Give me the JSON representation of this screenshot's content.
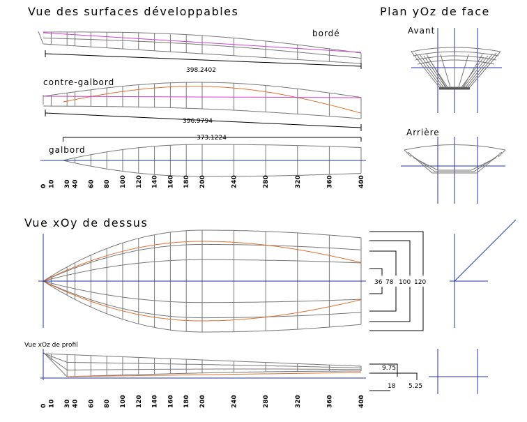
{
  "surfaces_view": {
    "title": "Vue des surfaces développables",
    "panels": [
      {
        "label": "bordé",
        "dimension": "398.2402"
      },
      {
        "label": "contre-galbord",
        "dimension": "396.9794"
      },
      {
        "label": "galbord",
        "dimension": "373.1224"
      }
    ]
  },
  "stations": [
    0,
    10,
    30,
    40,
    60,
    80,
    100,
    120,
    140,
    160,
    180,
    200,
    240,
    280,
    320,
    360,
    400
  ],
  "front_view": {
    "title": "Plan yOz de face",
    "labels": [
      "Avant",
      "Arrière"
    ]
  },
  "top_view": {
    "title": "Vue xOy de dessus",
    "dimensions": [
      "36",
      "78",
      "100",
      "120"
    ]
  },
  "profile_view": {
    "title": "Vue xOz de profil",
    "dimensions": [
      "9.75",
      "18",
      "5.25"
    ]
  }
}
